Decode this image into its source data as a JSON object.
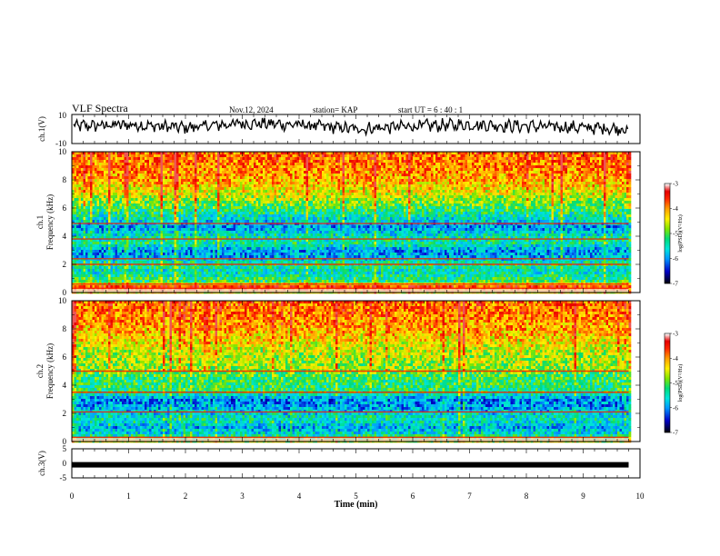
{
  "header": {
    "title": "VLF Spectra",
    "date": "Nov.12, 2024",
    "station": "station= KAP",
    "start": "start  UT  =   6  : 40 : 1"
  },
  "chart_data": [
    {
      "type": "line",
      "name": "ch1-waveform",
      "ylabel": "ch.1(V)",
      "ylim": [
        -10,
        10
      ],
      "yticks": [
        "10",
        "-10"
      ],
      "xlim": [
        0,
        10
      ],
      "trend": {
        "x": [
          0,
          1,
          2,
          3,
          4,
          5,
          6,
          7,
          8,
          9,
          9.8
        ],
        "y": [
          2,
          3,
          1,
          4,
          3,
          0,
          2,
          3,
          2,
          1,
          0
        ]
      }
    },
    {
      "type": "heatmap",
      "name": "ch1-spectrogram",
      "ylabel_line1": "ch.1",
      "ylabel_line2": "Frequency (kHz)",
      "ylim": [
        0,
        10
      ],
      "yticks": [
        "0",
        "2",
        "4",
        "6",
        "8",
        "10"
      ],
      "xlim": [
        0,
        10
      ],
      "data_end_min": 9.8,
      "colorbar": {
        "label": "log(PSD)(V²/Hz)",
        "range": [
          -7,
          -3
        ],
        "ticks": [
          "-3",
          "-4",
          "-5",
          "-6",
          "-7"
        ]
      },
      "bands_khz": [
        0.3,
        0.6,
        2.0,
        2.4,
        3.8,
        4.9
      ],
      "band_profile": [
        [
          0.0,
          -4.5
        ],
        [
          0.4,
          -3.6
        ],
        [
          0.8,
          -5.2
        ],
        [
          1.5,
          -5.6
        ],
        [
          2.0,
          -5.3
        ],
        [
          2.5,
          -5.9
        ],
        [
          3.0,
          -6.0
        ],
        [
          3.5,
          -5.4
        ],
        [
          4.0,
          -5.5
        ],
        [
          4.6,
          -6.0
        ],
        [
          5.2,
          -5.7
        ],
        [
          6.0,
          -5.2
        ],
        [
          7.0,
          -4.6
        ],
        [
          8.0,
          -4.2
        ],
        [
          9.0,
          -4.0
        ],
        [
          10.0,
          -3.9
        ]
      ]
    },
    {
      "type": "heatmap",
      "name": "ch2-spectrogram",
      "ylabel_line1": "ch.2",
      "ylabel_line2": "Frequency (kHz)",
      "ylim": [
        0,
        10
      ],
      "yticks": [
        "0",
        "2",
        "4",
        "6",
        "8",
        "10"
      ],
      "xlim": [
        0,
        10
      ],
      "data_end_min": 9.8,
      "colorbar": {
        "label": "log(PSD)(V²/Hz)",
        "range": [
          -7,
          -3
        ],
        "ticks": [
          "-3",
          "-4",
          "-5",
          "-6",
          "-7"
        ]
      },
      "bands_khz": [
        0.3,
        2.1,
        3.5,
        5.0
      ],
      "band_profile": [
        [
          0.0,
          -4.6
        ],
        [
          0.5,
          -5.6
        ],
        [
          1.0,
          -5.9
        ],
        [
          1.5,
          -5.5
        ],
        [
          2.0,
          -5.7
        ],
        [
          2.5,
          -6.0
        ],
        [
          3.0,
          -6.1
        ],
        [
          3.5,
          -5.3
        ],
        [
          4.5,
          -5.2
        ],
        [
          5.0,
          -4.9
        ],
        [
          6.0,
          -4.8
        ],
        [
          7.0,
          -4.5
        ],
        [
          8.0,
          -4.2
        ],
        [
          9.0,
          -4.0
        ],
        [
          10.0,
          -3.9
        ]
      ]
    },
    {
      "type": "line",
      "name": "ch3-waveform",
      "ylabel": "ch.3(V)",
      "ylim": [
        -5,
        5
      ],
      "yticks": [
        "5",
        "0",
        "-5"
      ],
      "xlim": [
        0,
        10
      ],
      "level": -0.5
    }
  ],
  "xaxis": {
    "label": "Time (min)",
    "ticks": [
      "0",
      "1",
      "2",
      "3",
      "4",
      "5",
      "6",
      "7",
      "8",
      "9",
      "10"
    ]
  }
}
